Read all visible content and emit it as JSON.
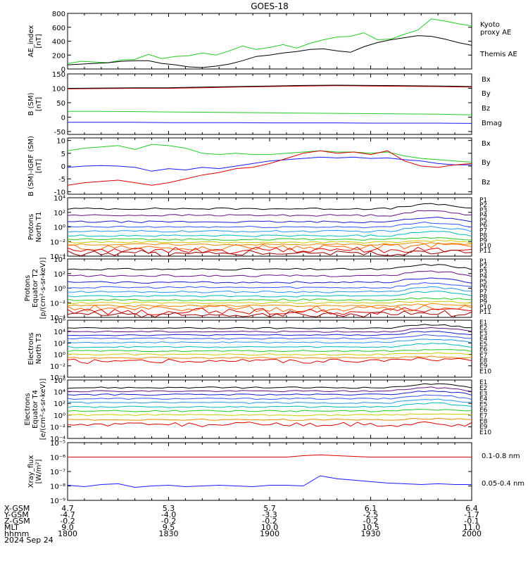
{
  "title": "GOES-18",
  "colors": {
    "green": "#22cc22",
    "black": "#000000",
    "red": "#dd0000",
    "blue": "#1a1aff",
    "darkred": "#990000",
    "channels": [
      "#000000",
      "#661188",
      "#1a1acc",
      "#3355ff",
      "#2299ee",
      "#00bbbb",
      "#22cc22",
      "#cccc00",
      "#ee8800",
      "#ff6600",
      "#dd0000",
      "#990000"
    ]
  },
  "chart_data": [
    {
      "type": "line",
      "id": "ae",
      "ylabel": [
        "AE_index",
        "[nT]"
      ],
      "ylim": [
        0,
        800
      ],
      "yticks": [
        {
          "v": 0,
          "l": "0"
        },
        {
          "v": 200,
          "l": "200"
        },
        {
          "v": 400,
          "l": "400"
        },
        {
          "v": 600,
          "l": "600"
        },
        {
          "v": 800,
          "l": "800"
        }
      ],
      "x": [
        0,
        4,
        8,
        12,
        16,
        20,
        24,
        28,
        32,
        36,
        40,
        44,
        48,
        52,
        56,
        60,
        64,
        68,
        72,
        76,
        80,
        84,
        88,
        92,
        96,
        100,
        104,
        108,
        112,
        116,
        120
      ],
      "series": [
        {
          "name": "Kyoto proxy AE",
          "label_lines": [
            "Kyoto",
            "proxy AE"
          ],
          "color": "#22cc22",
          "values": [
            80,
            110,
            100,
            90,
            130,
            140,
            210,
            150,
            180,
            190,
            230,
            200,
            260,
            330,
            280,
            310,
            350,
            300,
            370,
            420,
            460,
            470,
            520,
            420,
            430,
            500,
            560,
            720,
            690,
            650,
            620
          ]
        },
        {
          "name": "Themis AE",
          "label_lines": [
            "Themis AE"
          ],
          "color": "#000000",
          "values": [
            60,
            70,
            80,
            90,
            110,
            120,
            120,
            80,
            60,
            30,
            20,
            40,
            70,
            120,
            180,
            200,
            230,
            250,
            280,
            290,
            260,
            240,
            320,
            380,
            420,
            450,
            480,
            470,
            430,
            380,
            340
          ]
        }
      ]
    },
    {
      "type": "line",
      "id": "bsm",
      "ylabel": [
        "B (SM)",
        "[nT]"
      ],
      "ylim": [
        -60,
        150
      ],
      "yticks": [
        {
          "v": -50,
          "l": "-50"
        },
        {
          "v": 0,
          "l": "0"
        },
        {
          "v": 50,
          "l": "50"
        },
        {
          "v": 100,
          "l": "100"
        },
        {
          "v": 150,
          "l": "150"
        }
      ],
      "x": [
        0,
        10,
        20,
        30,
        40,
        50,
        60,
        70,
        80,
        90,
        100,
        110,
        120
      ],
      "series": [
        {
          "name": "Bx",
          "color": "#1a1aff",
          "values": [
            -18,
            -18,
            -18,
            -19,
            -19,
            -19,
            -20,
            -20,
            -20,
            -21,
            -21,
            -21,
            -22
          ]
        },
        {
          "name": "By",
          "color": "#22cc22",
          "values": [
            20,
            20,
            19,
            18,
            17,
            16,
            15,
            14,
            13,
            12,
            11,
            10,
            8
          ]
        },
        {
          "name": "Bz",
          "color": "#dd0000",
          "values": [
            98,
            99,
            100,
            100,
            102,
            104,
            106,
            108,
            109,
            108,
            107,
            106,
            104
          ]
        },
        {
          "name": "Bmag",
          "color": "#000000",
          "values": [
            100,
            101,
            102,
            102,
            104,
            106,
            108,
            110,
            111,
            110,
            109,
            108,
            106
          ]
        }
      ]
    },
    {
      "type": "line",
      "id": "bigrf",
      "ylabel": [
        "B (SM)-IGRF (SM)",
        "[nT]"
      ],
      "ylim": [
        -11,
        11
      ],
      "yticks": [
        {
          "v": -10,
          "l": "-10"
        },
        {
          "v": -5,
          "l": "-5"
        },
        {
          "v": 0,
          "l": "0"
        },
        {
          "v": 5,
          "l": "5"
        },
        {
          "v": 10,
          "l": "10"
        }
      ],
      "x": [
        0,
        5,
        10,
        15,
        20,
        25,
        30,
        35,
        40,
        45,
        50,
        55,
        60,
        65,
        70,
        75,
        80,
        85,
        90,
        95,
        100,
        105,
        110,
        115,
        120
      ],
      "series": [
        {
          "name": "Bx",
          "color": "#1a1aff",
          "values": [
            -0.5,
            0,
            0.2,
            0,
            -0.5,
            -2,
            -1,
            -1.5,
            -0.5,
            -1,
            0,
            1,
            2,
            2.5,
            3,
            3.5,
            3.2,
            3.5,
            3,
            3.2,
            2.5,
            2,
            1,
            0.5,
            0.5
          ]
        },
        {
          "name": "By",
          "color": "#22cc22",
          "values": [
            6,
            7,
            7.5,
            8,
            6.5,
            8.5,
            8,
            7,
            5,
            4.5,
            5,
            4.5,
            4.5,
            5,
            5.5,
            6,
            5.5,
            5.5,
            5,
            5.5,
            4,
            3,
            2.5,
            2,
            1.5
          ]
        },
        {
          "name": "Bz",
          "color": "#dd0000",
          "values": [
            -7.5,
            -6.5,
            -6,
            -5.5,
            -6.5,
            -7.5,
            -6.5,
            -5,
            -3.5,
            -2.5,
            -1,
            -0.5,
            1,
            3,
            5,
            6,
            5,
            5.5,
            4.5,
            6,
            2,
            0,
            -0.5,
            0.5,
            1
          ]
        }
      ]
    },
    {
      "type": "line",
      "id": "pnorth",
      "log": true,
      "ylabel": [
        "Protons",
        "North T1"
      ],
      "ylim": [
        -4,
        4
      ],
      "yticks": [
        {
          "v": -4,
          "l": "10⁻⁴"
        },
        {
          "v": -2,
          "l": "10⁻²"
        },
        {
          "v": 0,
          "l": "10⁰"
        },
        {
          "v": 2,
          "l": "10²"
        },
        {
          "v": 4,
          "l": "10⁴"
        }
      ],
      "series": [
        {
          "name": "P1",
          "base": 2.5,
          "color": "#000000"
        },
        {
          "name": "P2",
          "base": 1.6,
          "color": "#661188"
        },
        {
          "name": "P3",
          "base": 0.7,
          "color": "#1a1acc"
        },
        {
          "name": "P4",
          "base": 0.0,
          "color": "#3355ff"
        },
        {
          "name": "P5",
          "base": -0.6,
          "color": "#2299ee"
        },
        {
          "name": "P6",
          "base": -1.2,
          "color": "#00bbbb"
        },
        {
          "name": "P7",
          "base": -1.7,
          "color": "#22cc22"
        },
        {
          "name": "P8",
          "base": -2.1,
          "color": "#cccc00"
        },
        {
          "name": "P9",
          "base": -2.4,
          "color": "#ee8800"
        },
        {
          "name": "P10",
          "base": -2.8,
          "color": "#ff6600"
        },
        {
          "name": "P11",
          "base": -3.2,
          "color": "#dd0000"
        },
        {
          "name": "",
          "base": -3.6,
          "color": "#990000"
        }
      ]
    },
    {
      "type": "line",
      "id": "pequator",
      "log": true,
      "ylabel": [
        "Protons",
        "Equator T2",
        "[p/(cm²-s-sr-keV)]"
      ],
      "ylim": [
        -4,
        4
      ],
      "yticks": [
        {
          "v": -4,
          "l": "10⁻⁴"
        },
        {
          "v": -2,
          "l": "10⁻²"
        },
        {
          "v": 0,
          "l": "10⁰"
        },
        {
          "v": 2,
          "l": "10²"
        },
        {
          "v": 4,
          "l": "10⁴"
        }
      ],
      "series": [
        {
          "name": "P1",
          "base": 2.6,
          "color": "#000000"
        },
        {
          "name": "P2",
          "base": 1.7,
          "color": "#661188"
        },
        {
          "name": "P3",
          "base": 0.8,
          "color": "#1a1acc"
        },
        {
          "name": "P4",
          "base": 0.1,
          "color": "#3355ff"
        },
        {
          "name": "P5",
          "base": -0.5,
          "color": "#2299ee"
        },
        {
          "name": "P6",
          "base": -1.1,
          "color": "#00bbbb"
        },
        {
          "name": "P7",
          "base": -1.6,
          "color": "#22cc22"
        },
        {
          "name": "P8",
          "base": -2.0,
          "color": "#cccc00"
        },
        {
          "name": "P9",
          "base": -2.4,
          "color": "#ee8800"
        },
        {
          "name": "P10",
          "base": -2.8,
          "color": "#ff6600"
        },
        {
          "name": "P11",
          "base": -3.2,
          "color": "#dd0000"
        },
        {
          "name": "",
          "base": -3.6,
          "color": "#990000"
        }
      ]
    },
    {
      "type": "line",
      "id": "enorth",
      "log": true,
      "ylabel": [
        "Electrons",
        "North T3"
      ],
      "ylim": [
        -4,
        6
      ],
      "yticks": [
        {
          "v": -4,
          "l": "10⁻⁴"
        },
        {
          "v": -2,
          "l": "10⁻²"
        },
        {
          "v": 0,
          "l": "10⁰"
        },
        {
          "v": 2,
          "l": "10²"
        },
        {
          "v": 4,
          "l": "10⁴"
        },
        {
          "v": 6,
          "l": "10⁶"
        }
      ],
      "series": [
        {
          "name": "E1",
          "base": 4.6,
          "color": "#000000"
        },
        {
          "name": "E2",
          "base": 4.0,
          "color": "#661188"
        },
        {
          "name": "E3",
          "base": 3.4,
          "color": "#1a1acc"
        },
        {
          "name": "E4",
          "base": 2.8,
          "color": "#3355ff"
        },
        {
          "name": "E5",
          "base": 2.1,
          "color": "#2299ee"
        },
        {
          "name": "E6",
          "base": 1.3,
          "color": "#00bbbb"
        },
        {
          "name": "E7",
          "base": 0.6,
          "color": "#22cc22"
        },
        {
          "name": "E8",
          "base": 0.0,
          "color": "#cccc00"
        },
        {
          "name": "E9",
          "base": -0.6,
          "color": "#ee8800"
        },
        {
          "name": "E10",
          "base": -1.2,
          "color": "#dd0000"
        }
      ]
    },
    {
      "type": "line",
      "id": "eequator",
      "log": true,
      "ylabel": [
        "Electrons",
        "Equator T4",
        "[e/(cm²-s-sr-keV)]"
      ],
      "ylim": [
        -4,
        6
      ],
      "yticks": [
        {
          "v": -4,
          "l": "10⁻⁴"
        },
        {
          "v": -2,
          "l": "10⁻²"
        },
        {
          "v": 0,
          "l": "10⁰"
        },
        {
          "v": 2,
          "l": "10²"
        },
        {
          "v": 4,
          "l": "10⁴"
        },
        {
          "v": 6,
          "l": "10⁶"
        }
      ],
      "series": [
        {
          "name": "E1",
          "base": 4.7,
          "color": "#000000"
        },
        {
          "name": "E2",
          "base": 4.1,
          "color": "#661188"
        },
        {
          "name": "E3",
          "base": 3.5,
          "color": "#1a1acc"
        },
        {
          "name": "E4",
          "base": 2.8,
          "color": "#3355ff"
        },
        {
          "name": "E5",
          "base": 2.1,
          "color": "#2299ee"
        },
        {
          "name": "E6",
          "base": 1.4,
          "color": "#00bbbb"
        },
        {
          "name": "E7",
          "base": 0.7,
          "color": "#22cc22"
        },
        {
          "name": "E8",
          "base": 0.0,
          "color": "#cccc00"
        },
        {
          "name": "E9",
          "base": -0.8,
          "color": "#ee8800"
        },
        {
          "name": "E10",
          "base": -1.6,
          "color": "#dd0000"
        }
      ]
    },
    {
      "type": "line",
      "id": "xray",
      "log": true,
      "ylabel": [
        "Xray_flux",
        "[W/m²]"
      ],
      "ylim": [
        -9,
        -5
      ],
      "yticks": [
        {
          "v": -9,
          "l": "10⁻⁹"
        },
        {
          "v": -8,
          "l": "10⁻⁸"
        },
        {
          "v": -7,
          "l": "10⁻⁷"
        },
        {
          "v": -6,
          "l": "10⁻⁶"
        },
        {
          "v": -5,
          "l": "10⁻⁵"
        }
      ],
      "x": [
        0,
        5,
        10,
        15,
        20,
        25,
        30,
        35,
        40,
        45,
        50,
        55,
        60,
        65,
        70,
        75,
        80,
        85,
        90,
        95,
        100,
        105,
        110,
        115,
        120
      ],
      "series": [
        {
          "name": "0.1-0.8 nm",
          "color": "#dd0000",
          "values": [
            -6.0,
            -6.0,
            -6.0,
            -6.0,
            -6.0,
            -6.0,
            -6.0,
            -6.0,
            -6.0,
            -6.0,
            -6.0,
            -6.0,
            -6.0,
            -6.0,
            -5.9,
            -5.85,
            -5.9,
            -5.95,
            -6.0,
            -6.0,
            -6.0,
            -6.0,
            -6.0,
            -6.0,
            -6.0
          ]
        },
        {
          "name": "0.05-0.4 nm",
          "color": "#1a1aff",
          "values": [
            -7.95,
            -8.05,
            -7.9,
            -7.85,
            -8.1,
            -8.0,
            -7.95,
            -8.05,
            -8.0,
            -7.95,
            -8.0,
            -8.05,
            -7.95,
            -7.95,
            -8.0,
            -7.3,
            -7.5,
            -7.6,
            -7.7,
            -7.8,
            -7.85,
            -7.9,
            -7.85,
            -7.9,
            -7.9
          ]
        }
      ]
    }
  ],
  "footer": {
    "row_labels": [
      "X-GSM",
      "Y-GSM",
      "Z-GSM",
      "MLT",
      "hhmm"
    ],
    "date": "2024 Sep 24",
    "columns": [
      {
        "x_min": 0,
        "vals": [
          "4.7",
          "-4.7",
          "-0.2",
          "9.0",
          "1800"
        ]
      },
      {
        "x_min": 30,
        "vals": [
          "5.3",
          "-4.0",
          "-0.2",
          "9.5",
          "1830"
        ]
      },
      {
        "x_min": 60,
        "vals": [
          "5.7",
          "-3.3",
          "-0.2",
          "10.0",
          "1900"
        ]
      },
      {
        "x_min": 90,
        "vals": [
          "6.1",
          "-2.5",
          "-0.2",
          "10.5",
          "1930"
        ]
      },
      {
        "x_min": 120,
        "vals": [
          "6.4",
          "-1.7",
          "-0.1",
          "11.0",
          "2000"
        ]
      }
    ]
  }
}
